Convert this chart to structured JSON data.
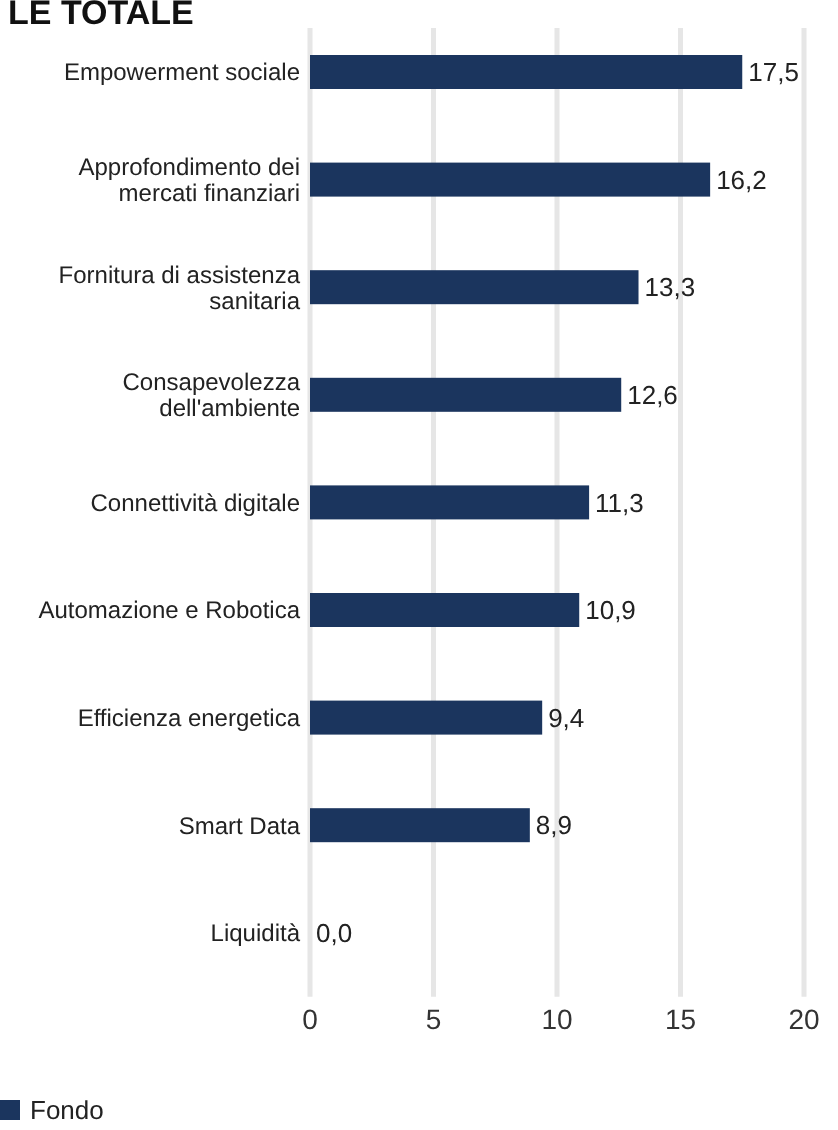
{
  "chart_data": {
    "type": "bar",
    "orientation": "horizontal",
    "title": "LE TOTALE",
    "categories": [
      "Empowerment sociale",
      "Approfondimento dei mercati finanziari",
      "Fornitura di assistenza sanitaria",
      "Consapevolezza dell'ambiente",
      "Connettività digitale",
      "Automazione e Robotica",
      "Efficienza energetica",
      "Smart Data",
      "Liquidità"
    ],
    "series": [
      {
        "name": "Fondo",
        "color": "#1b355e",
        "values": [
          17.5,
          16.2,
          13.3,
          12.6,
          11.3,
          10.9,
          9.4,
          8.9,
          0.0
        ],
        "value_labels": [
          "17,5",
          "16,2",
          "13,3",
          "12,6",
          "11,3",
          "10,9",
          "9,4",
          "8,9",
          "0,0"
        ]
      }
    ],
    "xlim": [
      0,
      20
    ],
    "xticks": [
      0,
      5,
      10,
      15,
      20
    ],
    "grid": "x",
    "legend": "bottom left"
  }
}
